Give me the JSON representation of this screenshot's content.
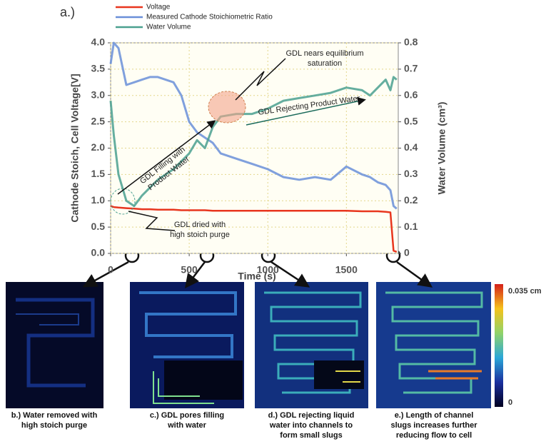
{
  "figure_label": "a.)",
  "chart_data": {
    "type": "line",
    "x_label": "Time (s)",
    "y_label": "Cathode Stoich, Cell Voltage[V]",
    "y2_label": "Water Volume (cm³)",
    "x": [
      0,
      20,
      50,
      100,
      150,
      200,
      250,
      300,
      400,
      450,
      500,
      550,
      600,
      650,
      700,
      800,
      900,
      1000,
      1100,
      1200,
      1300,
      1400,
      1500,
      1600,
      1650,
      1700,
      1750,
      1780,
      1800,
      1820
    ],
    "series": [
      {
        "name": "Voltage",
        "color": "#e8361e",
        "values": [
          0.9,
          0.88,
          0.87,
          0.86,
          0.85,
          0.84,
          0.84,
          0.83,
          0.83,
          0.82,
          0.82,
          0.82,
          0.82,
          0.81,
          0.81,
          0.81,
          0.81,
          0.81,
          0.81,
          0.81,
          0.81,
          0.81,
          0.81,
          0.8,
          0.8,
          0.8,
          0.79,
          0.78,
          0.05,
          0.03
        ]
      },
      {
        "name": "Measured Cathode Stoichiometric Ratio",
        "color": "#6a8fd8",
        "values": [
          3.6,
          4.0,
          3.9,
          3.2,
          3.25,
          3.3,
          3.35,
          3.35,
          3.25,
          3.0,
          2.5,
          2.3,
          2.2,
          2.1,
          1.9,
          1.8,
          1.7,
          1.6,
          1.45,
          1.4,
          1.45,
          1.4,
          1.65,
          1.5,
          1.45,
          1.35,
          1.3,
          1.2,
          0.9,
          0.85
        ]
      },
      {
        "name": "Water Volume",
        "color": "#4aa08f",
        "axis": "y2",
        "values": [
          0.58,
          0.45,
          0.3,
          0.2,
          0.18,
          0.22,
          0.25,
          0.28,
          0.32,
          0.35,
          0.38,
          0.43,
          0.4,
          0.48,
          0.52,
          0.53,
          0.53,
          0.55,
          0.58,
          0.59,
          0.6,
          0.61,
          0.63,
          0.62,
          0.6,
          0.63,
          0.66,
          0.62,
          0.67,
          0.66
        ]
      }
    ],
    "xlim": [
      0,
      1830
    ],
    "xticks": [
      0,
      500,
      1000,
      1500
    ],
    "ylim": [
      0,
      4
    ],
    "yticks": [
      {
        "value": 0,
        "label": "0.0"
      },
      0.5,
      {
        "value": 1,
        "label": "1.0"
      },
      1.5,
      {
        "value": 2,
        "label": "2.0"
      },
      2.5,
      {
        "value": 3,
        "label": "3.0"
      },
      3.5,
      {
        "value": 4,
        "label": "4.0"
      }
    ],
    "y2lim": [
      0,
      0.8
    ],
    "y2ticks": [
      0,
      0.1,
      0.2,
      0.3,
      0.4,
      0.5,
      0.6,
      0.7,
      0.8
    ],
    "grid": true,
    "annotations": [
      {
        "lines": [
          "GDL nears equilibrium",
          "saturation"
        ]
      },
      {
        "lines": [
          "GDL Rejecting Product Water"
        ]
      },
      {
        "lines": [
          "GDL Filling with",
          "Product Water"
        ]
      },
      {
        "lines": [
          "GDL dried with",
          "high stoich purge"
        ]
      }
    ]
  },
  "panels": [
    {
      "caption": [
        "b.) Water removed with",
        "high stoich purge"
      ]
    },
    {
      "caption": [
        "c.) GDL pores filling",
        "with water"
      ]
    },
    {
      "caption": [
        "d.) GDL rejecting liquid",
        "water into channels to",
        "form small slugs"
      ]
    },
    {
      "caption": [
        "e.) Length of channel",
        "slugs increases further",
        "reducing flow to cell"
      ]
    }
  ],
  "colorbar": {
    "max_label": "0.035 cm",
    "min_label": "0"
  }
}
